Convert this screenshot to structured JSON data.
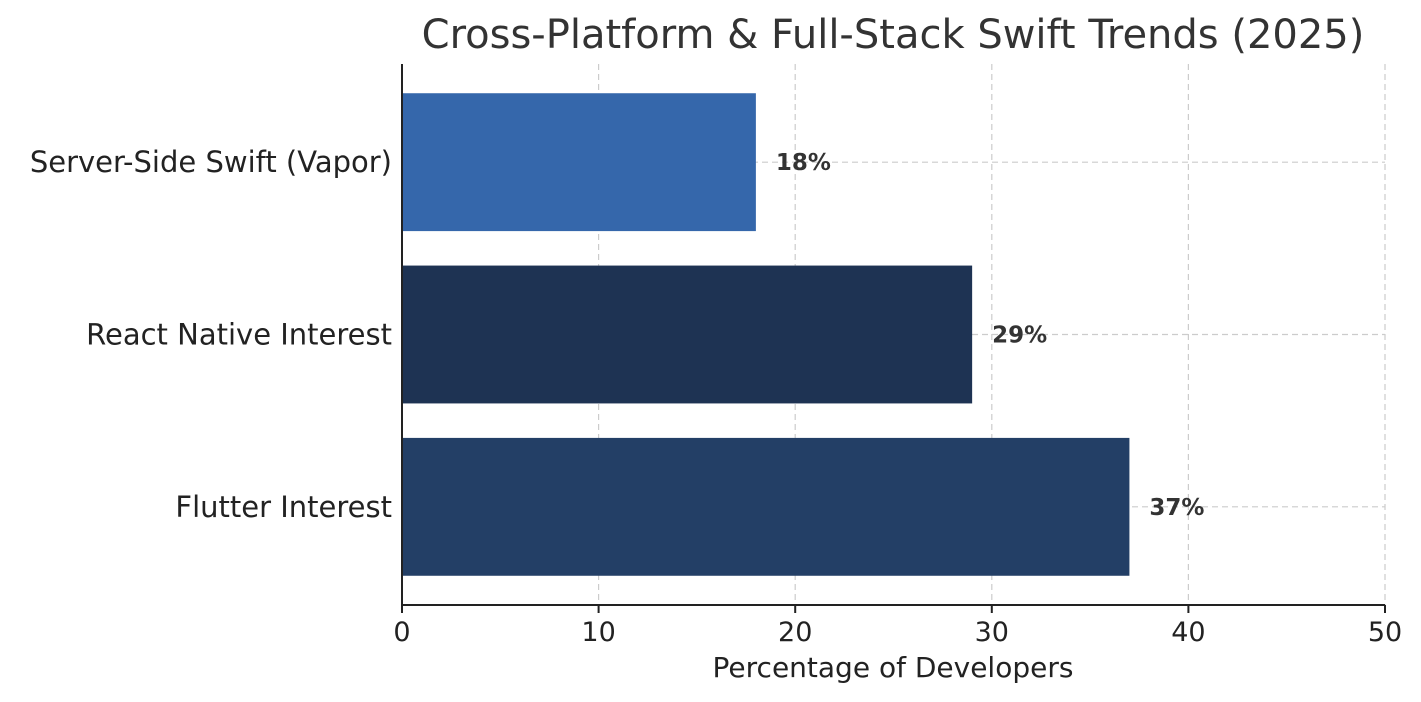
{
  "chart_data": {
    "type": "bar",
    "orientation": "horizontal",
    "title": "Cross-Platform & Full-Stack Swift Trends (2025)",
    "xlabel": "Percentage of Developers",
    "ylabel": "",
    "xlim": [
      0,
      50
    ],
    "xticks": [
      0,
      10,
      20,
      30,
      40,
      50
    ],
    "grid": true,
    "categories": [
      "Server-Side Swift (Vapor)",
      "React Native Interest",
      "Flutter Interest"
    ],
    "values": [
      18,
      29,
      37
    ],
    "data_labels": [
      "18%",
      "29%",
      "37%"
    ],
    "colors": [
      "#3567ab",
      "#1e3353",
      "#233f66"
    ]
  }
}
